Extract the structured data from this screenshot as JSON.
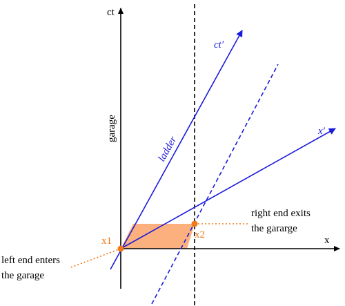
{
  "colors": {
    "axis": "#000000",
    "blue": "#1a1adc",
    "orange": "#f07818",
    "fill": "#fbb07d"
  },
  "labels": {
    "ct_axis": "ct",
    "x_axis": "x",
    "garage": "garage",
    "ladder": "ladder",
    "ct_prime": "ct′",
    "x_prime": "x′",
    "x1": "x1",
    "x2": "x2",
    "left_end_line1": "left end enters",
    "left_end_line2": "the garage",
    "right_end_line1": "right end exits",
    "right_end_line2": "the gararge"
  }
}
